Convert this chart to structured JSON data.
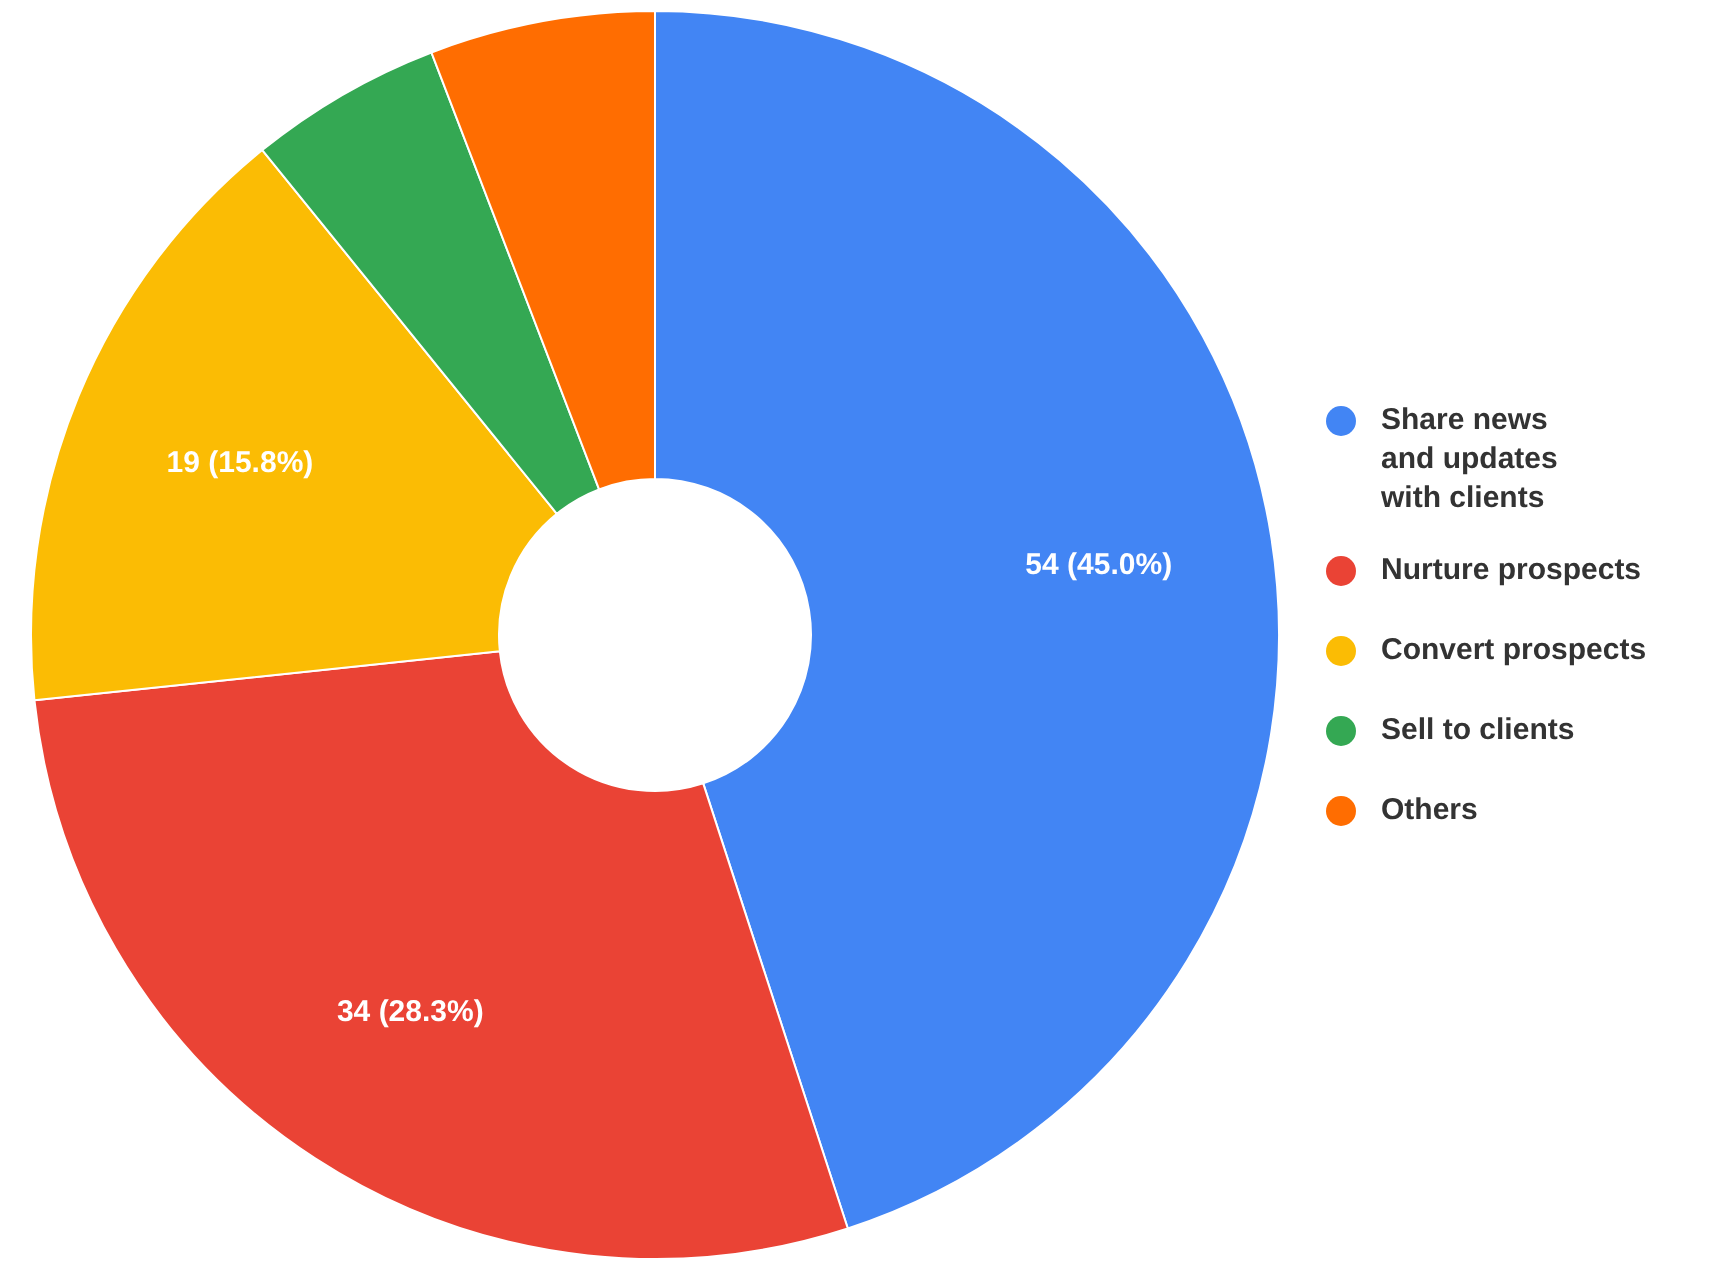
{
  "chart_data": {
    "type": "donut",
    "categories": [
      "Share news and updates with clients",
      "Nurture prospects",
      "Convert prospects",
      "Sell to clients",
      "Others"
    ],
    "values": [
      54,
      34,
      19,
      6,
      7
    ],
    "colors": [
      "#4285f4",
      "#ea4335",
      "#fbbc04",
      "#34a853",
      "#ff6d01"
    ],
    "value_labels": [
      "54 (45.0%)",
      "34 (28.3%)",
      "19 (15.8%)",
      null,
      null
    ],
    "legend": "right"
  }
}
